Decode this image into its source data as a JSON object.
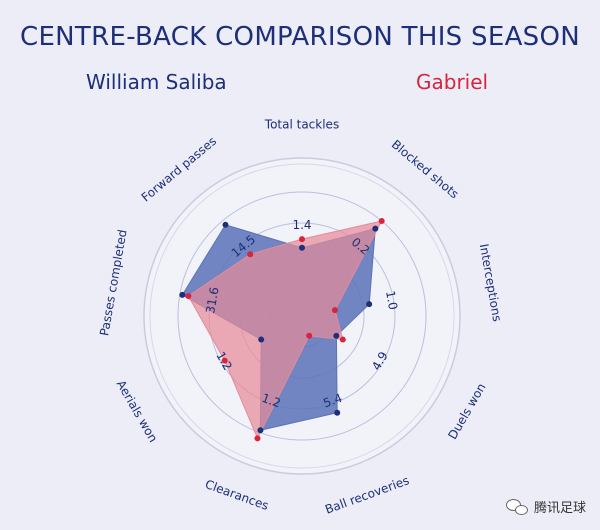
{
  "title": "CENTRE-BACK COMPARISON THIS SEASON",
  "players": {
    "a": "William Saliba",
    "b": "Gabriel"
  },
  "watermark": "腾讯足球",
  "colors": {
    "a": "#5b72b8",
    "a_dark": "#1c2f78",
    "b": "#e58a99",
    "b_dark": "#d8243e"
  },
  "chart_data": {
    "type": "radar",
    "axes": [
      {
        "label": "Total tackles",
        "tick": "1.4",
        "a": 0.55,
        "b": 0.62
      },
      {
        "label": "Blocked shots",
        "tick": "0.2",
        "a": 0.92,
        "b": 1.0
      },
      {
        "label": "Interceptions",
        "tick": "1.0",
        "a": 0.55,
        "b": 0.27
      },
      {
        "label": "Duels won",
        "tick": "4.9",
        "a": 0.32,
        "b": 0.38
      },
      {
        "label": "Ball recoveries",
        "tick": "5.4",
        "a": 0.83,
        "b": 0.17
      },
      {
        "label": "Clearances",
        "tick": "1.2",
        "a": 0.98,
        "b": 1.05
      },
      {
        "label": "Aerials won",
        "tick": "1.2",
        "a": 0.38,
        "b": 0.72
      },
      {
        "label": "Passes completed",
        "tick": "31.6",
        "a": 0.98,
        "b": 0.93
      },
      {
        "label": "Forward passes",
        "tick": "14.5",
        "a": 0.96,
        "b": 0.65
      }
    ]
  }
}
